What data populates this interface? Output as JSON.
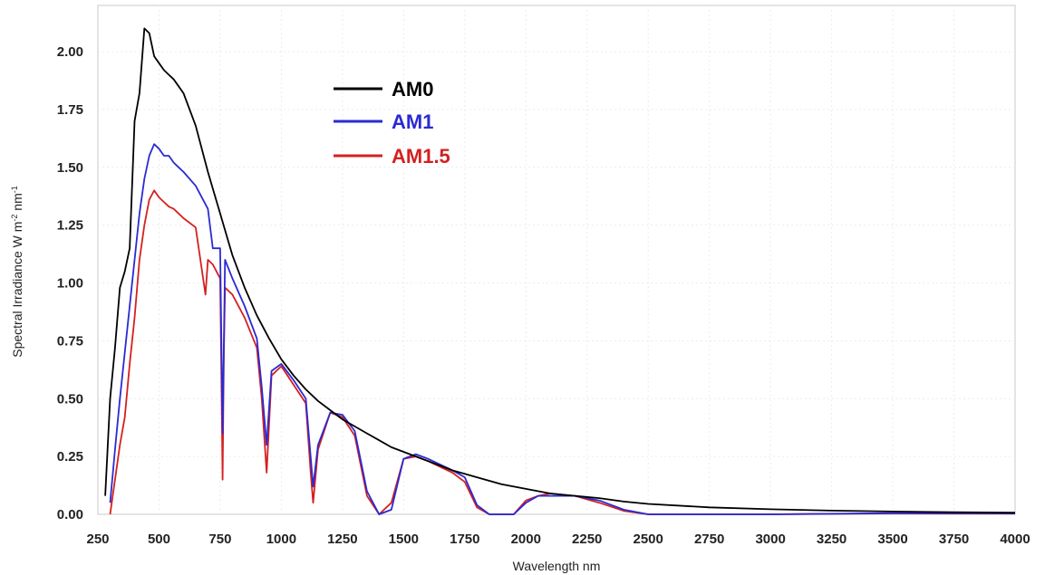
{
  "chart_data": {
    "type": "line",
    "title": "",
    "xlabel": "Wavelength nm",
    "ylabel_parts": {
      "main": "Spectral Irradiance W m",
      "exp1": "-2",
      "mid": " nm",
      "exp2": "-1"
    },
    "xlim": [
      250,
      4000
    ],
    "ylim": [
      0,
      2.1
    ],
    "xticks": [
      "250",
      "500",
      "750",
      "1000",
      "1250",
      "1500",
      "1750",
      "2000",
      "2250",
      "2500",
      "2750",
      "3000",
      "3250",
      "3500",
      "3750",
      "4000"
    ],
    "yticks": [
      "0.00",
      "0.25",
      "0.50",
      "0.75",
      "1.00",
      "1.25",
      "1.50",
      "1.75",
      "2.00"
    ],
    "grid": true,
    "legend_position": "top-left-center",
    "series": [
      {
        "name": "AM0",
        "color": "#000000",
        "x": [
          280,
          300,
          320,
          340,
          360,
          380,
          400,
          420,
          440,
          460,
          480,
          500,
          520,
          540,
          560,
          580,
          600,
          650,
          700,
          750,
          800,
          850,
          900,
          950,
          1000,
          1050,
          1100,
          1150,
          1200,
          1250,
          1300,
          1350,
          1400,
          1450,
          1500,
          1600,
          1700,
          1800,
          1900,
          2000,
          2100,
          2200,
          2300,
          2400,
          2500,
          2750,
          3000,
          3250,
          3500,
          3750,
          4000
        ],
        "y": [
          0.08,
          0.5,
          0.72,
          0.98,
          1.05,
          1.15,
          1.7,
          1.82,
          2.1,
          2.08,
          1.98,
          1.95,
          1.92,
          1.9,
          1.88,
          1.85,
          1.82,
          1.68,
          1.48,
          1.3,
          1.12,
          0.98,
          0.86,
          0.76,
          0.67,
          0.6,
          0.54,
          0.49,
          0.45,
          0.41,
          0.38,
          0.35,
          0.32,
          0.29,
          0.27,
          0.23,
          0.19,
          0.16,
          0.13,
          0.11,
          0.09,
          0.08,
          0.07,
          0.055,
          0.045,
          0.03,
          0.022,
          0.016,
          0.012,
          0.009,
          0.007
        ]
      },
      {
        "name": "AM1",
        "color": "#2a2ad4",
        "x": [
          300,
          320,
          340,
          360,
          380,
          400,
          420,
          440,
          460,
          480,
          500,
          520,
          540,
          560,
          580,
          600,
          650,
          700,
          720,
          750,
          760,
          770,
          800,
          850,
          900,
          920,
          940,
          960,
          1000,
          1050,
          1100,
          1130,
          1150,
          1200,
          1250,
          1300,
          1350,
          1400,
          1450,
          1500,
          1550,
          1600,
          1700,
          1750,
          1800,
          1850,
          1900,
          1950,
          2000,
          2050,
          2100,
          2200,
          2300,
          2400,
          2500,
          2600,
          3000,
          3500,
          4000
        ],
        "y": [
          0.05,
          0.28,
          0.5,
          0.7,
          0.9,
          1.1,
          1.3,
          1.45,
          1.55,
          1.6,
          1.58,
          1.55,
          1.55,
          1.52,
          1.5,
          1.48,
          1.42,
          1.32,
          1.15,
          1.15,
          0.35,
          1.1,
          1.02,
          0.9,
          0.76,
          0.55,
          0.3,
          0.62,
          0.65,
          0.58,
          0.5,
          0.12,
          0.3,
          0.44,
          0.43,
          0.36,
          0.1,
          0.0,
          0.02,
          0.24,
          0.26,
          0.24,
          0.19,
          0.16,
          0.04,
          0.0,
          0.0,
          0.0,
          0.05,
          0.08,
          0.08,
          0.08,
          0.06,
          0.02,
          0.0,
          0.0,
          0.0,
          0.005,
          0.004
        ]
      },
      {
        "name": "AM1.5",
        "color": "#d42020",
        "x": [
          300,
          320,
          340,
          360,
          380,
          400,
          420,
          440,
          460,
          480,
          500,
          520,
          540,
          560,
          580,
          600,
          650,
          690,
          700,
          720,
          750,
          755,
          760,
          765,
          770,
          800,
          850,
          900,
          920,
          940,
          960,
          1000,
          1050,
          1100,
          1120,
          1130,
          1150,
          1200,
          1250,
          1300,
          1350,
          1400,
          1450,
          1500,
          1550,
          1600,
          1700,
          1750,
          1800,
          1850,
          1900,
          1950,
          2000,
          2050,
          2100,
          2200,
          2300,
          2400,
          2500,
          2600,
          3000,
          3500,
          4000
        ],
        "y": [
          0.0,
          0.15,
          0.3,
          0.42,
          0.65,
          0.85,
          1.1,
          1.25,
          1.36,
          1.4,
          1.37,
          1.35,
          1.33,
          1.32,
          1.3,
          1.28,
          1.24,
          0.95,
          1.1,
          1.08,
          1.02,
          0.6,
          0.15,
          0.7,
          0.98,
          0.95,
          0.85,
          0.72,
          0.5,
          0.18,
          0.6,
          0.64,
          0.56,
          0.48,
          0.18,
          0.05,
          0.28,
          0.44,
          0.42,
          0.34,
          0.08,
          0.0,
          0.05,
          0.24,
          0.25,
          0.23,
          0.18,
          0.14,
          0.03,
          0.0,
          0.0,
          0.0,
          0.06,
          0.08,
          0.09,
          0.08,
          0.05,
          0.015,
          0.0,
          0.0,
          0.0,
          0.004,
          0.003
        ]
      }
    ]
  }
}
